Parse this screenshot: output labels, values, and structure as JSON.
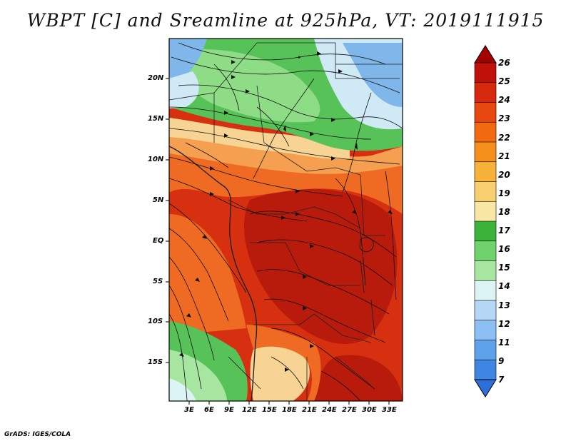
{
  "title": "WBPT [C] and Sreamline at 925hPa, VT: 2019111915",
  "credit": "GrADS: IGES/COLA",
  "lat_labels": [
    "20N",
    "15N",
    "10N",
    "5N",
    "EQ",
    "5S",
    "10S",
    "15S"
  ],
  "lon_labels": [
    "3E",
    "6E",
    "9E",
    "12E",
    "15E",
    "18E",
    "21E",
    "24E",
    "27E",
    "30E",
    "33E"
  ],
  "colorbar": {
    "labels": [
      "26",
      "25",
      "24",
      "23",
      "22",
      "21",
      "20",
      "19",
      "18",
      "17",
      "16",
      "15",
      "14",
      "13",
      "12",
      "11",
      "9",
      "7"
    ],
    "colors": [
      "#a50000",
      "#c0100a",
      "#d6280f",
      "#e8470f",
      "#f26a10",
      "#f5901c",
      "#f7b23a",
      "#f8d070",
      "#f9e7a6",
      "#3cb43c",
      "#6fd26a",
      "#a6e6a0",
      "#dcf4f4",
      "#b4d7f6",
      "#8cbff2",
      "#5fa2ec",
      "#3d86e3",
      "#2c6fd8"
    ]
  },
  "map_colors": {
    "deep_red": "#b81a0c",
    "red": "#d63010",
    "orange": "#ef6a22",
    "light_orange": "#f5a050",
    "tan": "#f7d494",
    "cream": "#faecc6",
    "green": "#57c257",
    "light_green": "#8fdc86",
    "pale_blue": "#cfe9f5",
    "blue": "#7fb7ea"
  }
}
